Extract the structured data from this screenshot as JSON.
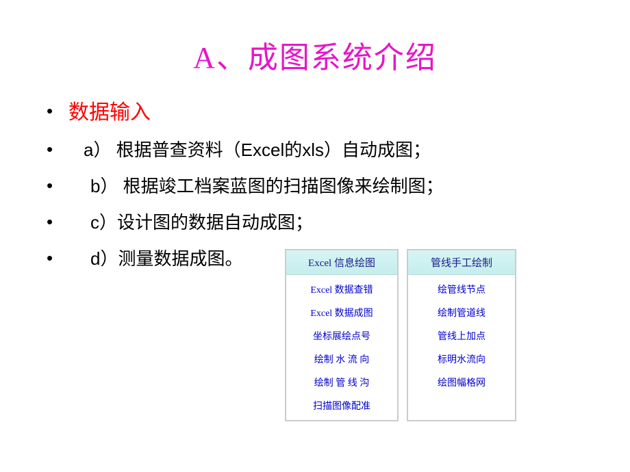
{
  "slide": {
    "title": "A、成图系统介绍",
    "title_color": "#e815c8",
    "title_fontsize": 44,
    "subtitle": "数据输入",
    "subtitle_color": "#ff0000",
    "items": {
      "a": "a） 根据普查资料（Excel的xls）自动成图；",
      "b": "b） 根据竣工档案蓝图的扫描图像来绘制图；",
      "c": "c）设计图的数据自动成图；",
      "d": "d）测量数据成图。"
    },
    "item_color": "#000000",
    "item_fontsize": 26,
    "bullet_char": "•"
  },
  "panels": {
    "panel1": {
      "header": "Excel 信息绘图",
      "items": [
        "Excel 数据查错",
        "Excel 数据成图",
        "坐标展绘点号",
        "绘制 水 流 向",
        "绘制 管 线 沟",
        "扫描图像配准"
      ]
    },
    "panel2": {
      "header": "管线手工绘制",
      "items": [
        "绘管线节点",
        "绘制管道线",
        "管线上加点",
        "标明水流向",
        "绘图幅格网"
      ]
    },
    "header_bg": "#c5eded",
    "header_text_color": "#1a1a8a",
    "item_text_color": "#0000cc",
    "border_color": "#cccccc"
  }
}
